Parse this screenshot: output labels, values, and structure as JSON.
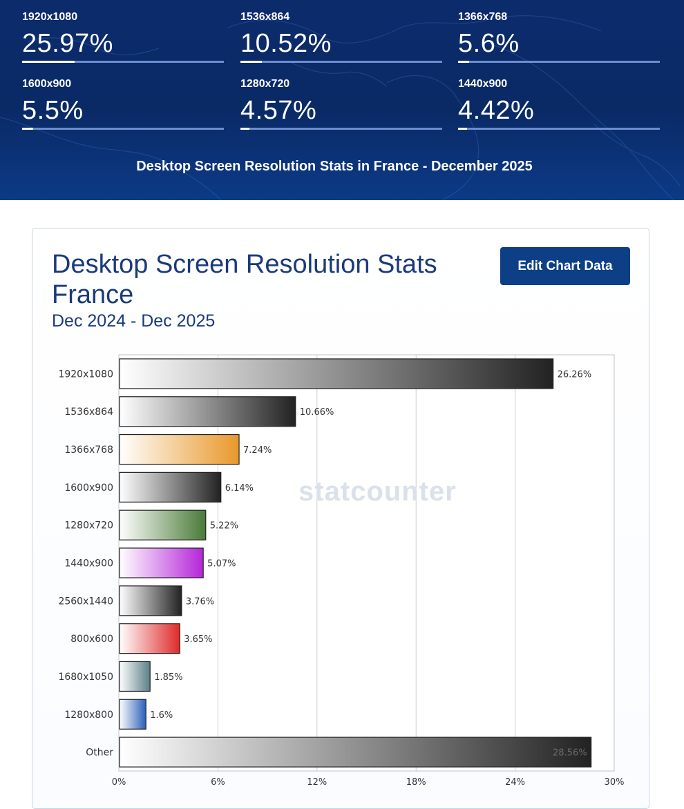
{
  "banner": {
    "title": "Desktop Screen Resolution Stats in France - December 2025",
    "stats": [
      {
        "label": "1920x1080",
        "value": "25.97%",
        "level": 0.2597
      },
      {
        "label": "1536x864",
        "value": "10.52%",
        "level": 0.1052
      },
      {
        "label": "1366x768",
        "value": "5.6%",
        "level": 0.056
      },
      {
        "label": "1600x900",
        "value": "5.5%",
        "level": 0.055
      },
      {
        "label": "1280x720",
        "value": "4.57%",
        "level": 0.0457
      },
      {
        "label": "1440x900",
        "value": "4.42%",
        "level": 0.0442
      }
    ]
  },
  "card": {
    "edit_button_label": "Edit Chart Data",
    "watermark": "statcounter"
  },
  "chart_data": {
    "type": "bar",
    "orientation": "horizontal",
    "title": "Desktop Screen Resolution Stats France",
    "subtitle": "Dec 2024 - Dec 2025",
    "categories": [
      "1920x1080",
      "1536x864",
      "1366x768",
      "1600x900",
      "1280x720",
      "1440x900",
      "2560x1440",
      "800x600",
      "1680x1050",
      "1280x800",
      "Other"
    ],
    "values": [
      26.26,
      10.66,
      7.24,
      6.14,
      5.22,
      5.07,
      3.76,
      3.65,
      1.85,
      1.6,
      28.56
    ],
    "value_labels": [
      "26.26%",
      "10.66%",
      "7.24%",
      "6.14%",
      "5.22%",
      "5.07%",
      "3.76%",
      "3.65%",
      "1.85%",
      "1.6%",
      "28.56%"
    ],
    "bar_colors": [
      "#222222",
      "#222222",
      "#e8982a",
      "#222222",
      "#4a7a38",
      "#b526d8",
      "#222222",
      "#e02a2a",
      "#5a7f86",
      "#2a5fb8",
      "#222222"
    ],
    "xticks": [
      0,
      6,
      12,
      18,
      24,
      30
    ],
    "xtick_labels": [
      "0%",
      "6%",
      "12%",
      "18%",
      "24%",
      "30%"
    ],
    "xlim": [
      0,
      30
    ],
    "grid": true,
    "legend": "none"
  }
}
